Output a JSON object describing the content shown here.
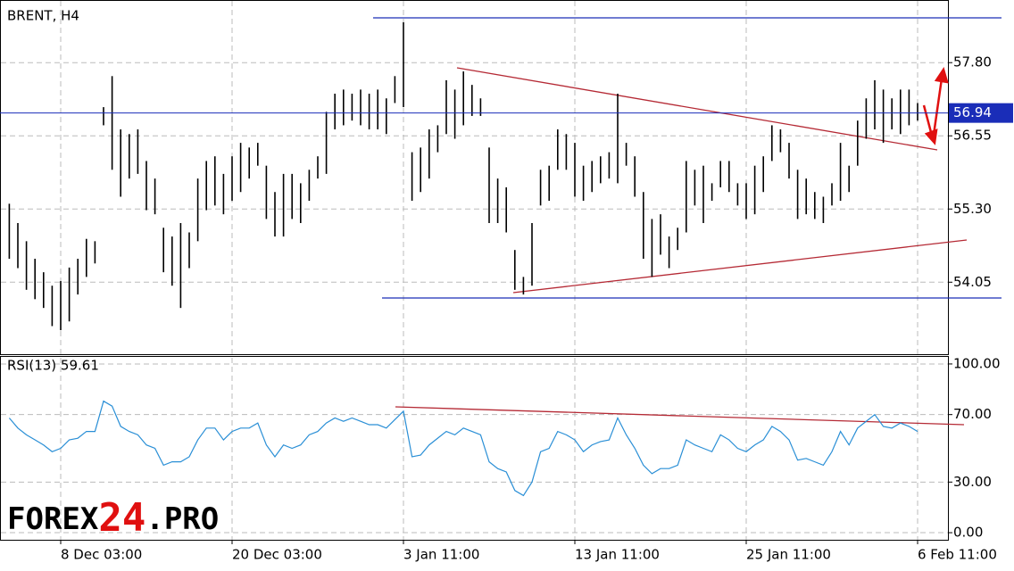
{
  "chart_data": [
    {
      "type": "ohlc",
      "title": "BRENT, H4",
      "color": "#000000",
      "grid": true,
      "categories": [
        null,
        null,
        null,
        null,
        null,
        null,
        "8 Dec 03:00",
        null,
        null,
        null,
        null,
        null,
        null,
        null,
        null,
        null,
        null,
        null,
        null,
        null,
        null,
        null,
        null,
        null,
        null,
        null,
        "20 Dec 03:00",
        null,
        null,
        null,
        null,
        null,
        null,
        null,
        null,
        null,
        null,
        null,
        null,
        null,
        null,
        null,
        null,
        null,
        null,
        null,
        "3 Jan 11:00",
        null,
        null,
        null,
        null,
        null,
        null,
        null,
        null,
        null,
        null,
        null,
        null,
        null,
        null,
        null,
        null,
        null,
        null,
        null,
        "13 Jan 11:00",
        null,
        null,
        null,
        null,
        null,
        null,
        null,
        null,
        null,
        null,
        null,
        null,
        null,
        null,
        null,
        null,
        null,
        null,
        null,
        "25 Jan 11:00",
        null,
        null,
        null,
        null,
        null,
        null,
        null,
        null,
        null,
        null,
        null,
        null,
        null,
        null,
        null,
        null,
        null,
        null,
        null,
        "6 Feb 11:00"
      ],
      "high": [
        55.39,
        55.06,
        54.75,
        54.45,
        54.22,
        53.99,
        54.07,
        54.3,
        54.45,
        54.79,
        54.75,
        57.04,
        57.57,
        56.66,
        56.58,
        56.66,
        56.12,
        55.82,
        54.98,
        54.83,
        55.06,
        54.9,
        55.82,
        56.12,
        56.2,
        55.9,
        56.2,
        56.43,
        56.35,
        56.43,
        56.04,
        55.59,
        55.9,
        55.9,
        55.74,
        55.97,
        56.2,
        56.96,
        57.27,
        57.34,
        57.27,
        57.34,
        57.27,
        57.34,
        57.19,
        57.57,
        58.49,
        56.27,
        56.35,
        56.66,
        56.73,
        57.5,
        57.34,
        57.65,
        57.42,
        57.19,
        56.35,
        55.82,
        55.67,
        54.6,
        54.14,
        55.06,
        55.97,
        56.04,
        56.66,
        56.58,
        56.43,
        56.04,
        56.12,
        56.2,
        56.27,
        57.27,
        56.43,
        56.2,
        55.59,
        55.13,
        55.21,
        54.83,
        54.98,
        56.12,
        55.97,
        56.04,
        55.74,
        56.12,
        56.12,
        55.74,
        55.74,
        56.04,
        56.2,
        56.73,
        56.66,
        56.43,
        55.97,
        55.82,
        55.59,
        55.51,
        55.74,
        56.43,
        56.04,
        56.81,
        57.19,
        57.5,
        57.34,
        57.19,
        57.34,
        57.34,
        57.11
      ],
      "low": [
        54.45,
        54.29,
        53.92,
        53.76,
        53.61,
        53.3,
        53.23,
        53.38,
        53.84,
        54.14,
        54.37,
        56.73,
        55.97,
        55.51,
        55.82,
        55.9,
        55.28,
        55.21,
        54.22,
        53.99,
        53.61,
        54.29,
        54.75,
        55.28,
        55.36,
        55.21,
        55.44,
        55.59,
        55.82,
        56.04,
        55.13,
        54.83,
        54.83,
        55.13,
        55.06,
        55.44,
        55.82,
        55.9,
        56.66,
        56.73,
        56.81,
        56.73,
        56.66,
        56.66,
        56.58,
        57.11,
        57.04,
        55.44,
        55.59,
        55.82,
        56.27,
        56.58,
        56.5,
        56.73,
        56.89,
        56.89,
        55.06,
        55.06,
        54.9,
        53.92,
        53.84,
        53.99,
        55.36,
        55.44,
        55.97,
        55.97,
        55.51,
        55.44,
        55.59,
        55.74,
        55.82,
        55.74,
        56.04,
        55.51,
        54.45,
        54.14,
        54.52,
        54.29,
        54.6,
        54.9,
        55.36,
        55.06,
        55.44,
        55.67,
        55.59,
        55.36,
        55.13,
        55.21,
        55.59,
        56.12,
        56.27,
        55.82,
        55.13,
        55.21,
        55.13,
        55.06,
        55.36,
        55.44,
        55.59,
        56.04,
        56.5,
        56.66,
        56.43,
        56.66,
        56.58,
        56.73,
        56.81
      ],
      "ylim": [
        52.82,
        58.87
      ],
      "yticks": [
        {
          "value": 57.8,
          "label": "57.80"
        },
        56.55,
        {
          "value": 55.3,
          "label": "55.30"
        },
        54.05
      ],
      "last_price": 56.94
    },
    {
      "type": "line",
      "title": "RSI(13) 59.61",
      "color": "#2a8fd6",
      "grid": true,
      "values": [
        68,
        62,
        58,
        55,
        52,
        48,
        50,
        55,
        56,
        60,
        60,
        78,
        75,
        63,
        60,
        58,
        52,
        50,
        40,
        42,
        42,
        45,
        55,
        62,
        62,
        55,
        60,
        62,
        62,
        65,
        52,
        45,
        52,
        50,
        52,
        58,
        60,
        65,
        68,
        66,
        68,
        66,
        64,
        64,
        62,
        67,
        72,
        45,
        46,
        52,
        56,
        60,
        58,
        62,
        60,
        58,
        42,
        38,
        36,
        25,
        22,
        30,
        48,
        50,
        60,
        58,
        55,
        48,
        52,
        54,
        55,
        68,
        58,
        50,
        40,
        35,
        38,
        38,
        40,
        55,
        52,
        50,
        48,
        58,
        55,
        50,
        48,
        52,
        55,
        63,
        60,
        55,
        43,
        44,
        42,
        40,
        48,
        60,
        52,
        62,
        66,
        70,
        63,
        62,
        65,
        63,
        60
      ],
      "ylim": [
        -4.2,
        104.2
      ],
      "yticks": [
        {
          "value": 100,
          "label": "100.00"
        },
        {
          "value": 70,
          "label": "70.00"
        },
        {
          "value": 30,
          "label": "30.00"
        },
        {
          "value": 0,
          "label": "0.00"
        }
      ]
    }
  ],
  "logo": {
    "parts": [
      "FOREX",
      "24",
      ".PRO"
    ]
  }
}
